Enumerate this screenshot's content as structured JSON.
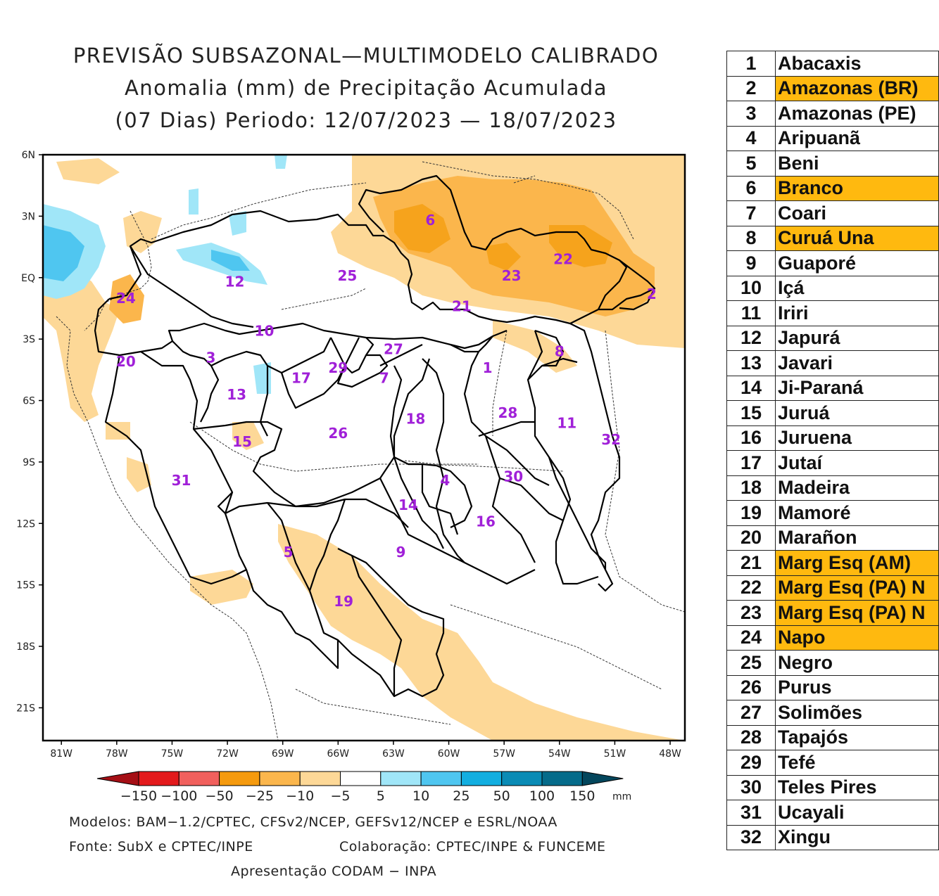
{
  "title": {
    "line1": "PREVISÃO SUBSAZONAL—MULTIMODELO CALIBRADO",
    "line2": "Anomalia (mm) de Precipitação Acumulada",
    "line3": "(07 Dias) Periodo: 12/07/2023 — 18/07/2023"
  },
  "axes": {
    "lat_labels": [
      "6N",
      "3N",
      "EQ",
      "3S",
      "6S",
      "9S",
      "12S",
      "15S",
      "18S",
      "21S"
    ],
    "lon_labels": [
      "81W",
      "78W",
      "75W",
      "72W",
      "69W",
      "66W",
      "63W",
      "60W",
      "57W",
      "54W",
      "51W",
      "48W"
    ]
  },
  "basin_numbers": [
    {
      "n": "1",
      "lon": -57.9,
      "lat": -4.4
    },
    {
      "n": "2",
      "lon": -49.0,
      "lat": -0.8
    },
    {
      "n": "3",
      "lon": -72.9,
      "lat": -3.9
    },
    {
      "n": "4",
      "lon": -60.2,
      "lat": -9.9
    },
    {
      "n": "5",
      "lon": -68.7,
      "lat": -13.4
    },
    {
      "n": "6",
      "lon": -61.0,
      "lat": 2.8
    },
    {
      "n": "7",
      "lon": -63.5,
      "lat": -4.9
    },
    {
      "n": "8",
      "lon": -54.0,
      "lat": -3.6
    },
    {
      "n": "9",
      "lon": -62.6,
      "lat": -13.4
    },
    {
      "n": "10",
      "lon": -70.0,
      "lat": -2.6
    },
    {
      "n": "11",
      "lon": -53.6,
      "lat": -7.1
    },
    {
      "n": "12",
      "lon": -71.6,
      "lat": -0.2
    },
    {
      "n": "13",
      "lon": -71.5,
      "lat": -5.7
    },
    {
      "n": "14",
      "lon": -62.2,
      "lat": -11.1
    },
    {
      "n": "15",
      "lon": -71.2,
      "lat": -8.0
    },
    {
      "n": "16",
      "lon": -58.0,
      "lat": -11.9
    },
    {
      "n": "17",
      "lon": -68.0,
      "lat": -4.9
    },
    {
      "n": "18",
      "lon": -61.8,
      "lat": -6.9
    },
    {
      "n": "19",
      "lon": -65.7,
      "lat": -15.8
    },
    {
      "n": "20",
      "lon": -77.5,
      "lat": -4.1
    },
    {
      "n": "21",
      "lon": -59.3,
      "lat": -1.4
    },
    {
      "n": "22",
      "lon": -53.8,
      "lat": 0.9
    },
    {
      "n": "23",
      "lon": -56.6,
      "lat": 0.1
    },
    {
      "n": "24",
      "lon": -77.5,
      "lat": -1.0
    },
    {
      "n": "25",
      "lon": -65.5,
      "lat": 0.1
    },
    {
      "n": "26",
      "lon": -66.0,
      "lat": -7.6
    },
    {
      "n": "27",
      "lon": -63.0,
      "lat": -3.5
    },
    {
      "n": "28",
      "lon": -56.8,
      "lat": -6.6
    },
    {
      "n": "29",
      "lon": -66.0,
      "lat": -4.4
    },
    {
      "n": "30",
      "lon": -56.5,
      "lat": -9.7
    },
    {
      "n": "31",
      "lon": -74.5,
      "lat": -9.9
    },
    {
      "n": "32",
      "lon": -51.2,
      "lat": -7.9
    }
  ],
  "colorbar": {
    "colors": [
      "#a50f15",
      "#e31a1c",
      "#f1605d",
      "#f59a0e",
      "#fbb64c",
      "#fdd897",
      "#ffffff",
      "#a0e6f8",
      "#4fc6f0",
      "#12aee0",
      "#0a8bb5",
      "#056b8a",
      "#03465c"
    ],
    "labels": [
      "−150",
      "−100",
      "−50",
      "−25",
      "−10",
      "−5",
      "5",
      "10",
      "25",
      "50",
      "100",
      "150"
    ],
    "unit": "mm"
  },
  "footer": {
    "models": "Modelos: BAM−1.2/CPTEC, CFSv2/NCEP, GEFSv12/NCEP e ESRL/NOAA",
    "source": "Fonte: SubX e CPTEC/INPE",
    "collab": "Colaboração: CPTEC/INPE & FUNCEME",
    "presentation": "Apresentação CODAM − INPA"
  },
  "basins_table": [
    {
      "num": "1",
      "name": "Abacaxis",
      "highlight": false
    },
    {
      "num": "2",
      "name": "Amazonas (BR)",
      "highlight": true
    },
    {
      "num": "3",
      "name": "Amazonas (PE)",
      "highlight": false
    },
    {
      "num": "4",
      "name": "Aripuanã",
      "highlight": false
    },
    {
      "num": "5",
      "name": "Beni",
      "highlight": false
    },
    {
      "num": "6",
      "name": "Branco",
      "highlight": true
    },
    {
      "num": "7",
      "name": "Coari",
      "highlight": false
    },
    {
      "num": "8",
      "name": "Curuá Una",
      "highlight": true
    },
    {
      "num": "9",
      "name": "Guaporé",
      "highlight": false
    },
    {
      "num": "10",
      "name": "Içá",
      "highlight": false
    },
    {
      "num": "11",
      "name": "Iriri",
      "highlight": false
    },
    {
      "num": "12",
      "name": "Japurá",
      "highlight": false
    },
    {
      "num": "13",
      "name": "Javari",
      "highlight": false
    },
    {
      "num": "14",
      "name": "Ji-Paraná",
      "highlight": false
    },
    {
      "num": "15",
      "name": "Juruá",
      "highlight": false
    },
    {
      "num": "16",
      "name": "Juruena",
      "highlight": false
    },
    {
      "num": "17",
      "name": "Jutaí",
      "highlight": false
    },
    {
      "num": "18",
      "name": "Madeira",
      "highlight": false
    },
    {
      "num": "19",
      "name": "Mamoré",
      "highlight": false
    },
    {
      "num": "20",
      "name": "Marañon",
      "highlight": false
    },
    {
      "num": "21",
      "name": "Marg Esq (AM)",
      "highlight": true
    },
    {
      "num": "22",
      "name": "Marg Esq (PA) N",
      "highlight": true
    },
    {
      "num": "23",
      "name": "Marg Esq (PA) N",
      "highlight": true
    },
    {
      "num": "24",
      "name": "Napo",
      "highlight": true
    },
    {
      "num": "25",
      "name": "Negro",
      "highlight": false
    },
    {
      "num": "26",
      "name": "Purus",
      "highlight": false
    },
    {
      "num": "27",
      "name": "Solimões",
      "highlight": false
    },
    {
      "num": "28",
      "name": "Tapajós",
      "highlight": false
    },
    {
      "num": "29",
      "name": "Tefé",
      "highlight": false
    },
    {
      "num": "30",
      "name": "Teles Pires",
      "highlight": false
    },
    {
      "num": "31",
      "name": "Ucayali",
      "highlight": false
    },
    {
      "num": "32",
      "name": "Xingu",
      "highlight": false
    }
  ]
}
